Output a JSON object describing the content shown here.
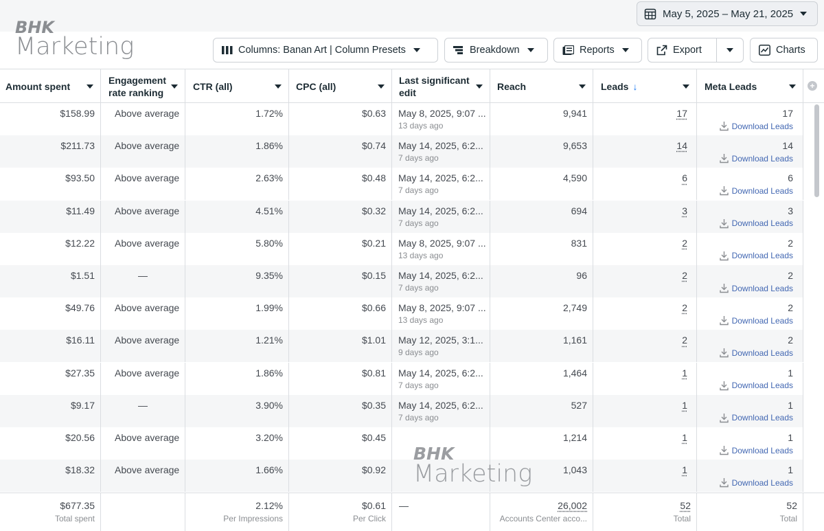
{
  "date_range": {
    "label": "May 5, 2025 – May 21, 2025"
  },
  "logo": {
    "line1": "BHK",
    "line2": "Marketing"
  },
  "toolbar": {
    "columns_label": "Columns: Banan Art | Column Presets",
    "breakdown_label": "Breakdown",
    "reports_label": "Reports",
    "export_label": "Export",
    "charts_label": "Charts"
  },
  "columns": [
    {
      "label": "Amount spent"
    },
    {
      "label": "Engagement rate ranking"
    },
    {
      "label": "CTR (all)"
    },
    {
      "label": "CPC (all)"
    },
    {
      "label": "Last significant edit"
    },
    {
      "label": "Reach"
    },
    {
      "label": "Leads",
      "sort": "↓"
    },
    {
      "label": "Meta Leads"
    }
  ],
  "download_label": "Download Leads",
  "rows": [
    {
      "spent": "$158.99",
      "ranking": "Above average",
      "ctr": "1.72%",
      "cpc": "$0.63",
      "edit": "May 8, 2025, 9:07 ...",
      "edit_ago": "13 days ago",
      "reach": "9,941",
      "leads": "17",
      "meta_leads": "17"
    },
    {
      "spent": "$211.73",
      "ranking": "Above average",
      "ctr": "1.86%",
      "cpc": "$0.74",
      "edit": "May 14, 2025, 6:2...",
      "edit_ago": "7 days ago",
      "reach": "9,653",
      "leads": "14",
      "meta_leads": "14"
    },
    {
      "spent": "$93.50",
      "ranking": "Above average",
      "ctr": "2.63%",
      "cpc": "$0.48",
      "edit": "May 14, 2025, 6:2...",
      "edit_ago": "7 days ago",
      "reach": "4,590",
      "leads": "6",
      "meta_leads": "6"
    },
    {
      "spent": "$11.49",
      "ranking": "Above average",
      "ctr": "4.51%",
      "cpc": "$0.32",
      "edit": "May 14, 2025, 6:2...",
      "edit_ago": "7 days ago",
      "reach": "694",
      "leads": "3",
      "meta_leads": "3"
    },
    {
      "spent": "$12.22",
      "ranking": "Above average",
      "ctr": "5.80%",
      "cpc": "$0.21",
      "edit": "May 8, 2025, 9:07 ...",
      "edit_ago": "13 days ago",
      "reach": "831",
      "leads": "2",
      "meta_leads": "2"
    },
    {
      "spent": "$1.51",
      "ranking": "—",
      "ctr": "9.35%",
      "cpc": "$0.15",
      "edit": "May 14, 2025, 6:2...",
      "edit_ago": "7 days ago",
      "reach": "96",
      "leads": "2",
      "meta_leads": "2"
    },
    {
      "spent": "$49.76",
      "ranking": "Above average",
      "ctr": "1.99%",
      "cpc": "$0.66",
      "edit": "May 8, 2025, 9:07 ...",
      "edit_ago": "13 days ago",
      "reach": "2,749",
      "leads": "2",
      "meta_leads": "2"
    },
    {
      "spent": "$16.11",
      "ranking": "Above average",
      "ctr": "1.21%",
      "cpc": "$1.01",
      "edit": "May 12, 2025, 3:1...",
      "edit_ago": "9 days ago",
      "reach": "1,161",
      "leads": "2",
      "meta_leads": "2"
    },
    {
      "spent": "$27.35",
      "ranking": "Above average",
      "ctr": "1.86%",
      "cpc": "$0.81",
      "edit": "May 14, 2025, 6:2...",
      "edit_ago": "7 days ago",
      "reach": "1,464",
      "leads": "1",
      "meta_leads": "1"
    },
    {
      "spent": "$9.17",
      "ranking": "—",
      "ctr": "3.90%",
      "cpc": "$0.35",
      "edit": "May 14, 2025, 6:2...",
      "edit_ago": "7 days ago",
      "reach": "527",
      "leads": "1",
      "meta_leads": "1"
    },
    {
      "spent": "$20.56",
      "ranking": "Above average",
      "ctr": "3.20%",
      "cpc": "$0.45",
      "edit": "",
      "edit_ago": "",
      "reach": "1,214",
      "leads": "1",
      "meta_leads": "1"
    },
    {
      "spent": "$18.32",
      "ranking": "Above average",
      "ctr": "1.66%",
      "cpc": "$0.92",
      "edit": "",
      "edit_ago": "",
      "reach": "1,043",
      "leads": "1",
      "meta_leads": "1"
    }
  ],
  "totals": {
    "spent": "$677.35",
    "spent_note": "Total spent",
    "ctr": "2.12%",
    "ctr_note": "Per Impressions",
    "cpc": "$0.61",
    "cpc_note": "Per Click",
    "edit": "—",
    "reach": "26,002",
    "reach_note": "Accounts Center acco...",
    "leads": "52",
    "leads_note": "Total",
    "meta_leads": "52",
    "meta_leads_note": "Total"
  },
  "colors": {
    "accent": "#1877f2",
    "link": "#4267b2",
    "border": "#dadde1",
    "alt_row": "#f5f6f7"
  }
}
